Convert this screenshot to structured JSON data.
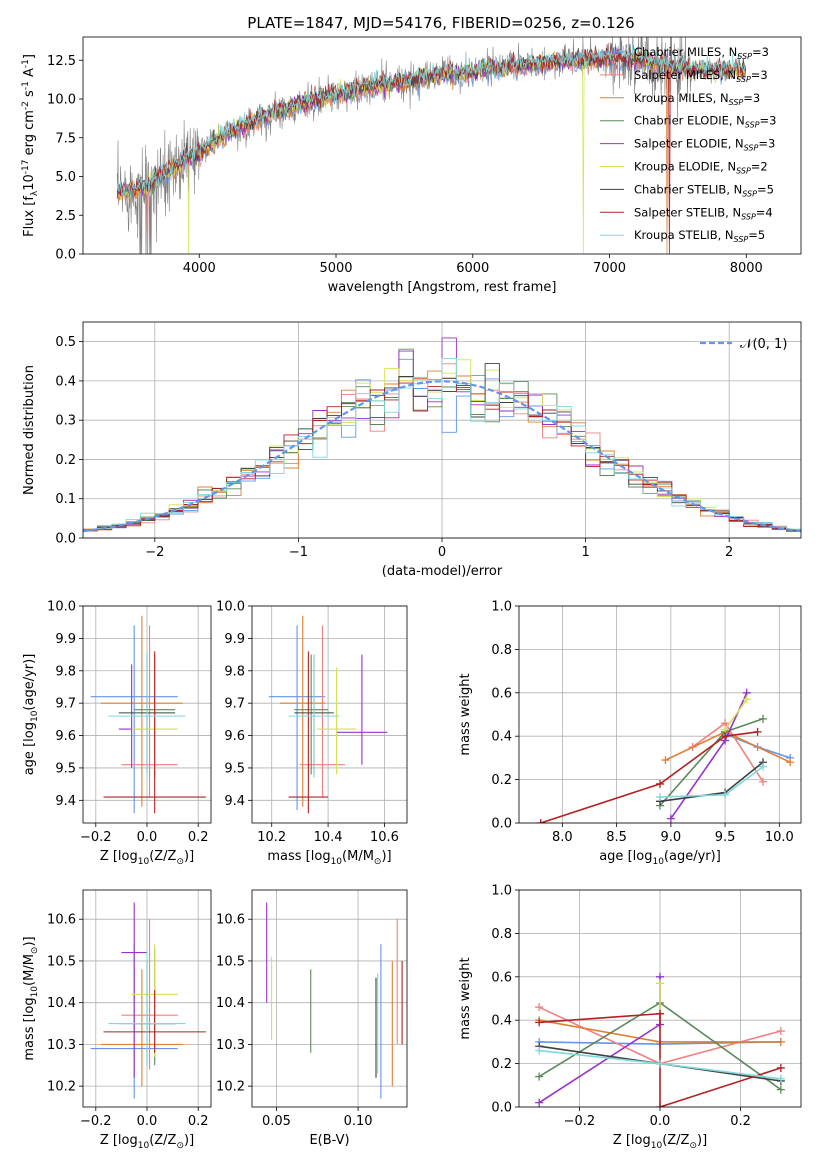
{
  "figure": {
    "title": "PLATE=1847, MJD=54176, FIBERID=0256, z=0.126"
  },
  "colors": {
    "Chabrier MILES": "#6495ed",
    "Salpeter MILES": "#f08080",
    "Kroupa MILES": "#e08030",
    "Chabrier ELODIE": "#5a8a5a",
    "Salpeter ELODIE": "#9932cc",
    "Kroupa ELODIE": "#d4e157",
    "Chabrier STELIB": "#404040",
    "Salpeter STELIB": "#b22222",
    "Kroupa STELIB": "#7fd8dc",
    "data": "#808080",
    "grid": "#b0b0b0",
    "normal": "#6495ed"
  },
  "chart_data": [
    {
      "id": "spectrum",
      "type": "line",
      "title": "PLATE=1847, MJD=54176, FIBERID=0256, z=0.126",
      "xlabel": "wavelength [Angstrom, rest frame]",
      "ylabel": "Flux [f$_λ$10$^{-17}$ erg cm$^{-2}$ s$^{-1}$ A$^{-1}$]",
      "xlim": [
        3150,
        8400
      ],
      "ylim": [
        0,
        14
      ],
      "xticks": [
        4000,
        5000,
        6000,
        7000,
        8000
      ],
      "yticks": [
        0.0,
        2.5,
        5.0,
        7.5,
        10.0,
        12.5
      ],
      "xtick_labels": [
        "4000",
        "5000",
        "6000",
        "7000",
        "8000"
      ],
      "ytick_labels": [
        "0.0",
        "2.5",
        "5.0",
        "7.5",
        "10.0",
        "12.5"
      ],
      "grid": false,
      "legend": "top-right",
      "legend_entries": [
        {
          "label": "Chabrier MILES, N_SSP=3",
          "main": "Chabrier MILES, N",
          "sub": "SSP",
          "tail": "=3"
        },
        {
          "label": "Salpeter MILES, N_SSP=3",
          "main": "Salpeter MILES, N",
          "sub": "SSP",
          "tail": "=3"
        },
        {
          "label": "Kroupa MILES, N_SSP=3",
          "main": "Kroupa MILES, N",
          "sub": "SSP",
          "tail": "=3"
        },
        {
          "label": "Chabrier ELODIE, N_SSP=3",
          "main": "Chabrier ELODIE, N",
          "sub": "SSP",
          "tail": "=3"
        },
        {
          "label": "Salpeter ELODIE, N_SSP=3",
          "main": "Salpeter ELODIE, N",
          "sub": "SSP",
          "tail": "=3"
        },
        {
          "label": "Kroupa ELODIE, N_SSP=2",
          "main": "Kroupa ELODIE, N",
          "sub": "SSP",
          "tail": "=2"
        },
        {
          "label": "Chabrier STELIB, N_SSP=5",
          "main": "Chabrier STELIB, N",
          "sub": "SSP",
          "tail": "=5"
        },
        {
          "label": "Salpeter STELIB, N_SSP=4",
          "main": "Salpeter STELIB, N",
          "sub": "SSP",
          "tail": "=4"
        },
        {
          "label": "Kroupa STELIB, N_SSP=5",
          "main": "Kroupa STELIB, N",
          "sub": "SSP",
          "tail": "=5"
        }
      ],
      "continuum": {
        "x": [
          3400,
          3600,
          3800,
          4000,
          4200,
          4400,
          4600,
          4800,
          5000,
          5200,
          5400,
          5600,
          5800,
          6000,
          6200,
          6400,
          6600,
          6800,
          7000,
          7200,
          7400,
          7600
        ],
        "y": [
          3.9,
          4.3,
          5.5,
          6.5,
          7.8,
          8.6,
          9.3,
          9.8,
          10.3,
          10.7,
          11.0,
          11.3,
          11.6,
          11.8,
          12.0,
          12.2,
          12.4,
          12.5,
          12.6,
          12.6,
          12.2,
          11.9
        ]
      },
      "spikes": {
        "Salpeter MILES": [
          3620,
          7440
        ],
        "Kroupa ELODIE": [
          3920,
          6810
        ],
        "Salpeter STELIB": [
          7440
        ],
        "Kroupa MILES": [
          7420
        ]
      }
    },
    {
      "id": "residuals",
      "type": "histogram",
      "xlabel": "(data-model)/error",
      "ylabel": "Normed distribution",
      "xlim": [
        -2.5,
        2.5
      ],
      "ylim": [
        0,
        0.55
      ],
      "xticks": [
        -2,
        -1,
        0,
        1,
        2
      ],
      "yticks": [
        0.0,
        0.1,
        0.2,
        0.3,
        0.4,
        0.5
      ],
      "xtick_labels": [
        "−2",
        "−1",
        "0",
        "1",
        "2"
      ],
      "ytick_labels": [
        "0.0",
        "0.1",
        "0.2",
        "0.3",
        "0.4",
        "0.5"
      ],
      "grid": true,
      "legend": "top-right",
      "legend_label": "𝒩(0, 1)",
      "bin_width": 0.1
    },
    {
      "id": "age-vs-Z",
      "type": "errorbar",
      "xlabel": "Z [log$_{10}$(Z/Z$_⊙$)]",
      "ylabel": "age  [log$_{10}$(age/yr)]",
      "xlim": [
        -0.25,
        0.25
      ],
      "ylim": [
        9.33,
        10.0
      ],
      "xticks": [
        -0.2,
        0.0,
        0.2
      ],
      "yticks": [
        9.4,
        9.5,
        9.6,
        9.7,
        9.8,
        9.9,
        10.0
      ],
      "xtick_labels": [
        "−0.2",
        "0.0",
        "0.2"
      ],
      "ytick_labels": [
        "9.4",
        "9.5",
        "9.6",
        "9.7",
        "9.8",
        "9.9",
        "10.0"
      ],
      "grid": true,
      "points": [
        {
          "series": "Chabrier MILES",
          "x": -0.05,
          "xerr": 0.17,
          "y": 9.72,
          "yerr": [
            0.36,
            0.22
          ]
        },
        {
          "series": "Salpeter MILES",
          "x": 0.01,
          "xerr": 0.11,
          "y": 9.51,
          "yerr": [
            0.1,
            0.43
          ]
        },
        {
          "series": "Kroupa MILES",
          "x": -0.02,
          "xerr": 0.16,
          "y": 9.7,
          "yerr": [
            0.32,
            0.27
          ]
        },
        {
          "series": "Chabrier ELODIE",
          "x": 0.03,
          "xerr": 0.08,
          "y": 9.68,
          "yerr": [
            0.21,
            0.17
          ]
        },
        {
          "series": "Salpeter ELODIE",
          "x": -0.06,
          "xerr": 0.05,
          "y": 9.62,
          "yerr": [
            0.12,
            0.2
          ]
        },
        {
          "series": "Kroupa ELODIE",
          "x": 0.03,
          "xerr": 0.09,
          "y": 9.62,
          "yerr": [
            0.15,
            0.23
          ]
        },
        {
          "series": "Chabrier STELIB",
          "x": 0.0,
          "xerr": 0.11,
          "y": 9.67,
          "yerr": [
            0.18,
            0.18
          ]
        },
        {
          "series": "Salpeter STELIB",
          "x": 0.03,
          "xerr": 0.2,
          "y": 9.41,
          "yerr": [
            0.05,
            0.45
          ]
        },
        {
          "series": "Kroupa STELIB",
          "x": 0.0,
          "xerr": 0.15,
          "y": 9.66,
          "yerr": [
            0.19,
            0.2
          ]
        }
      ]
    },
    {
      "id": "age-vs-mass",
      "type": "errorbar",
      "xlabel": "mass [log$_{10}$(M/M$_⊙$)]",
      "ylabel": "",
      "xlim": [
        10.13,
        10.68
      ],
      "ylim": [
        9.33,
        10.0
      ],
      "xticks": [
        10.2,
        10.4,
        10.6
      ],
      "yticks": [
        9.4,
        9.5,
        9.6,
        9.7,
        9.8,
        9.9,
        10.0
      ],
      "xtick_labels": [
        "10.2",
        "10.4",
        "10.6"
      ],
      "ytick_labels": [
        "9.4",
        "9.5",
        "9.6",
        "9.7",
        "9.8",
        "9.9",
        "10.0"
      ],
      "grid": true,
      "points": [
        {
          "series": "Chabrier MILES",
          "x": 10.29,
          "xerr": 0.1,
          "y": 9.72,
          "yerr": [
            0.35,
            0.22
          ]
        },
        {
          "series": "Salpeter MILES",
          "x": 10.38,
          "xerr": 0.08,
          "y": 9.51,
          "yerr": [
            0.1,
            0.43
          ]
        },
        {
          "series": "Kroupa MILES",
          "x": 10.31,
          "xerr": 0.08,
          "y": 9.7,
          "yerr": [
            0.32,
            0.27
          ]
        },
        {
          "series": "Chabrier ELODIE",
          "x": 10.34,
          "xerr": 0.06,
          "y": 9.68,
          "yerr": [
            0.2,
            0.17
          ]
        },
        {
          "series": "Salpeter ELODIE",
          "x": 10.52,
          "xerr": 0.09,
          "y": 9.61,
          "yerr": [
            0.1,
            0.24
          ]
        },
        {
          "series": "Kroupa ELODIE",
          "x": 10.43,
          "xerr": 0.07,
          "y": 9.62,
          "yerr": [
            0.14,
            0.19
          ]
        },
        {
          "series": "Chabrier STELIB",
          "x": 10.35,
          "xerr": 0.07,
          "y": 9.67,
          "yerr": [
            0.19,
            0.18
          ]
        },
        {
          "series": "Salpeter STELIB",
          "x": 10.33,
          "xerr": 0.07,
          "y": 9.41,
          "yerr": [
            0.05,
            0.45
          ]
        },
        {
          "series": "Kroupa STELIB",
          "x": 10.35,
          "xerr": 0.09,
          "y": 9.66,
          "yerr": [
            0.19,
            0.19
          ]
        }
      ]
    },
    {
      "id": "mass-weight-vs-age",
      "type": "line",
      "xlabel": "age  [log$_{10}$(age/yr)]",
      "ylabel": "mass weight",
      "xlim": [
        7.6,
        10.2
      ],
      "ylim": [
        0,
        1.0
      ],
      "xticks": [
        8.0,
        8.5,
        9.0,
        9.5,
        10.0
      ],
      "yticks": [
        0.0,
        0.2,
        0.4,
        0.6,
        0.8,
        1.0
      ],
      "xtick_labels": [
        "8.0",
        "8.5",
        "9.0",
        "9.5",
        "10.0"
      ],
      "ytick_labels": [
        "0.0",
        "0.2",
        "0.4",
        "0.6",
        "0.8",
        "1.0"
      ],
      "grid": true,
      "series": [
        {
          "name": "Chabrier MILES",
          "x": [
            9.5,
            9.8,
            10.1
          ],
          "y": [
            0.41,
            0.35,
            0.3
          ]
        },
        {
          "name": "Salpeter MILES",
          "x": [
            9.2,
            9.5,
            9.85
          ],
          "y": [
            0.35,
            0.46,
            0.19
          ]
        },
        {
          "name": "Kroupa MILES",
          "x": [
            8.95,
            9.5,
            10.1
          ],
          "y": [
            0.29,
            0.42,
            0.28
          ]
        },
        {
          "name": "Chabrier ELODIE",
          "x": [
            8.9,
            9.5,
            9.85
          ],
          "y": [
            0.08,
            0.42,
            0.48
          ]
        },
        {
          "name": "Salpeter ELODIE",
          "x": [
            9.0,
            9.5,
            9.7
          ],
          "y": [
            0.02,
            0.38,
            0.6
          ]
        },
        {
          "name": "Kroupa ELODIE",
          "x": [
            9.5,
            9.7
          ],
          "y": [
            0.43,
            0.57
          ]
        },
        {
          "name": "Chabrier STELIB",
          "x": [
            8.9,
            9.5,
            9.85
          ],
          "y": [
            0.1,
            0.14,
            0.28
          ]
        },
        {
          "name": "Salpeter STELIB",
          "x": [
            7.8,
            8.9,
            9.5,
            9.8
          ],
          "y": [
            0.0,
            0.18,
            0.4,
            0.42
          ]
        },
        {
          "name": "Kroupa STELIB",
          "x": [
            8.9,
            9.5,
            9.85
          ],
          "y": [
            0.12,
            0.13,
            0.26
          ]
        }
      ]
    },
    {
      "id": "mass-vs-Z",
      "type": "errorbar",
      "xlabel": "Z [log$_{10}$(Z/Z$_⊙$)]",
      "ylabel": "mass [log$_{10}$(M/M$_⊙$)]",
      "xlim": [
        -0.25,
        0.25
      ],
      "ylim": [
        10.15,
        10.67
      ],
      "xticks": [
        -0.2,
        0.0,
        0.2
      ],
      "yticks": [
        10.2,
        10.3,
        10.4,
        10.5,
        10.6
      ],
      "xtick_labels": [
        "−0.2",
        "0.0",
        "0.2"
      ],
      "ytick_labels": [
        "10.2",
        "10.3",
        "10.4",
        "10.5",
        "10.6"
      ],
      "grid": true,
      "points": [
        {
          "series": "Chabrier MILES",
          "x": -0.05,
          "xerr": 0.17,
          "y": 10.29,
          "yerr": [
            0.12,
            0.25
          ]
        },
        {
          "series": "Salpeter MILES",
          "x": 0.01,
          "xerr": 0.11,
          "y": 10.37,
          "yerr": [
            0.13,
            0.23
          ]
        },
        {
          "series": "Kroupa MILES",
          "x": -0.02,
          "xerr": 0.16,
          "y": 10.3,
          "yerr": [
            0.1,
            0.18
          ]
        },
        {
          "series": "Chabrier ELODIE",
          "x": 0.03,
          "xerr": 0.08,
          "y": 10.35,
          "yerr": [
            0.1,
            0.18
          ]
        },
        {
          "series": "Salpeter ELODIE",
          "x": -0.05,
          "xerr": 0.05,
          "y": 10.52,
          "yerr": [
            0.3,
            0.12
          ]
        },
        {
          "series": "Kroupa ELODIE",
          "x": 0.03,
          "xerr": 0.09,
          "y": 10.42,
          "yerr": [
            0.15,
            0.12
          ]
        },
        {
          "series": "Chabrier STELIB",
          "x": 0.0,
          "xerr": 0.11,
          "y": 10.35,
          "yerr": [
            0.1,
            0.15
          ]
        },
        {
          "series": "Salpeter STELIB",
          "x": 0.03,
          "xerr": 0.2,
          "y": 10.33,
          "yerr": [
            0.05,
            0.1
          ]
        },
        {
          "series": "Kroupa STELIB",
          "x": 0.0,
          "xerr": 0.15,
          "y": 10.35,
          "yerr": [
            0.1,
            0.18
          ]
        }
      ]
    },
    {
      "id": "mass-vs-EBV",
      "type": "errorbar",
      "xlabel": "E(B-V)",
      "ylabel": "",
      "xlim": [
        0.035,
        0.13
      ],
      "ylim": [
        10.15,
        10.67
      ],
      "xticks": [
        0.05,
        0.1
      ],
      "yticks": [
        10.2,
        10.3,
        10.4,
        10.5,
        10.6
      ],
      "xtick_labels": [
        "0.05",
        "0.10"
      ],
      "ytick_labels": [
        "10.2",
        "10.3",
        "10.4",
        "10.5",
        "10.6"
      ],
      "grid": true,
      "points": [
        {
          "series": "Chabrier MILES",
          "x": 0.114,
          "y": 10.37,
          "yerr": [
            0.2,
            0.17
          ]
        },
        {
          "series": "Salpeter MILES",
          "x": 0.124,
          "y": 10.45,
          "yerr": [
            0.15,
            0.15
          ]
        },
        {
          "series": "Kroupa MILES",
          "x": 0.121,
          "y": 10.35,
          "yerr": [
            0.15,
            0.15
          ]
        },
        {
          "series": "Chabrier ELODIE",
          "x": 0.071,
          "y": 10.38,
          "yerr": [
            0.1,
            0.1
          ]
        },
        {
          "series": "Salpeter ELODIE",
          "x": 0.044,
          "y": 10.52,
          "yerr": [
            0.12,
            0.12
          ]
        },
        {
          "series": "Kroupa ELODIE",
          "x": 0.047,
          "y": 10.41,
          "yerr": [
            0.1,
            0.1
          ]
        },
        {
          "series": "Chabrier STELIB",
          "x": 0.111,
          "y": 10.34,
          "yerr": [
            0.12,
            0.12
          ]
        },
        {
          "series": "Salpeter STELIB",
          "x": 0.127,
          "y": 10.4,
          "yerr": [
            0.1,
            0.1
          ]
        },
        {
          "series": "Kroupa STELIB",
          "x": 0.112,
          "y": 10.35,
          "yerr": [
            0.12,
            0.12
          ]
        }
      ]
    },
    {
      "id": "mass-weight-vs-Z",
      "type": "line",
      "xlabel": "Z [log$_{10}$(Z/Z$_⊙$)]",
      "ylabel": "mass weight",
      "xlim": [
        -0.35,
        0.35
      ],
      "ylim": [
        0,
        1.0
      ],
      "xticks": [
        -0.2,
        0.0,
        0.2
      ],
      "yticks": [
        0.0,
        0.2,
        0.4,
        0.6,
        0.8,
        1.0
      ],
      "xtick_labels": [
        "−0.2",
        "0.0",
        "0.2"
      ],
      "ytick_labels": [
        "0.0",
        "0.2",
        "0.4",
        "0.6",
        "0.8",
        "1.0"
      ],
      "grid": true,
      "series": [
        {
          "name": "Chabrier MILES",
          "x": [
            -0.3,
            0.0,
            0.3
          ],
          "y": [
            0.3,
            0.29,
            0.3
          ]
        },
        {
          "name": "Salpeter MILES",
          "x": [
            -0.3,
            0.0,
            0.3
          ],
          "y": [
            0.46,
            0.2,
            0.35
          ]
        },
        {
          "name": "Kroupa MILES",
          "x": [
            -0.3,
            0.0,
            0.3
          ],
          "y": [
            0.4,
            0.3,
            0.3
          ]
        },
        {
          "name": "Chabrier ELODIE",
          "x": [
            -0.3,
            0.0,
            0.3
          ],
          "y": [
            0.14,
            0.48,
            0.08
          ]
        },
        {
          "name": "Salpeter ELODIE",
          "x": [
            -0.3,
            0.0,
            0.0
          ],
          "y": [
            0.02,
            0.38,
            0.6
          ]
        },
        {
          "name": "Kroupa ELODIE",
          "x": [
            0.0,
            0.0
          ],
          "y": [
            0.43,
            0.57
          ]
        },
        {
          "name": "Chabrier STELIB",
          "x": [
            -0.3,
            0.0,
            0.3
          ],
          "y": [
            0.28,
            0.2,
            0.12
          ]
        },
        {
          "name": "Salpeter STELIB",
          "x": [
            -0.3,
            0.0,
            0.0,
            0.3
          ],
          "y": [
            0.39,
            0.43,
            0.0,
            0.18
          ]
        },
        {
          "name": "Kroupa STELIB",
          "x": [
            -0.3,
            0.0,
            0.3
          ],
          "y": [
            0.26,
            0.2,
            0.13
          ]
        }
      ]
    }
  ]
}
